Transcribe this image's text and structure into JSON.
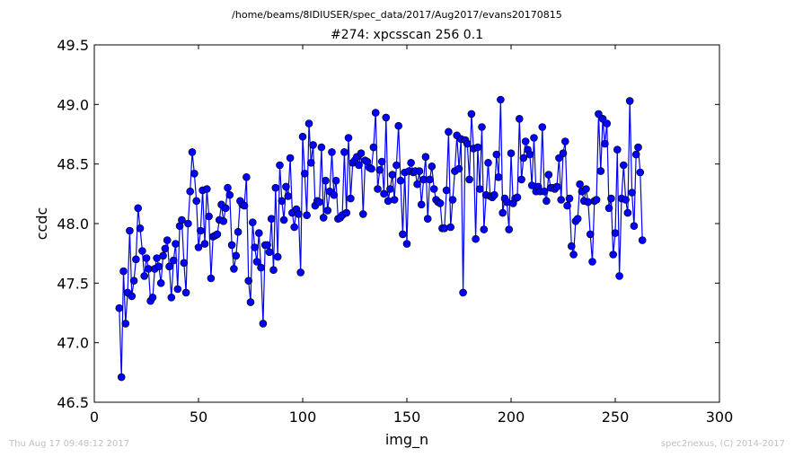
{
  "header": {
    "path": "/home/beams/8IDIUSER/spec_data/2017/Aug2017/evans20170815"
  },
  "footer": {
    "timestamp": "Thu Aug 17 09:48:12 2017",
    "credit": "spec2nexus, (C) 2014-2017"
  },
  "chart_data": {
    "type": "line",
    "title": "#274: xpcsscan 256 0.1",
    "xlabel": "img_n",
    "ylabel": "ccdc",
    "xlim": [
      0,
      300
    ],
    "ylim": [
      46.5,
      49.5
    ],
    "xticks": [
      "0",
      "50",
      "100",
      "150",
      "200",
      "250",
      "300"
    ],
    "yticks": [
      "46.5",
      "47.0",
      "47.5",
      "48.0",
      "48.5",
      "49.0",
      "49.5"
    ],
    "grid": false,
    "marker": "circle",
    "line_color": "#0000ff",
    "series": [
      {
        "x_start": 12,
        "x_step": 1,
        "values": [
          47.29,
          46.71,
          47.6,
          47.16,
          47.42,
          47.94,
          47.39,
          47.52,
          47.7,
          48.13,
          47.96,
          47.77,
          47.56,
          47.71,
          47.62,
          47.35,
          47.38,
          47.62,
          47.71,
          47.64,
          47.5,
          47.73,
          47.79,
          47.86,
          47.64,
          47.38,
          47.69,
          47.83,
          47.45,
          47.98,
          48.03,
          47.67,
          47.42,
          48.0,
          48.27,
          48.6,
          48.42,
          48.19,
          47.8,
          47.94,
          48.28,
          47.83,
          48.29,
          48.06,
          47.54,
          47.89,
          47.9,
          47.91,
          48.03,
          48.16,
          48.02,
          48.13,
          48.3,
          48.24,
          47.82,
          47.62,
          47.73,
          47.93,
          48.19,
          48.16,
          48.15,
          48.39,
          47.52,
          47.34,
          48.01,
          47.8,
          47.68,
          47.92,
          47.63,
          47.16,
          47.82,
          47.82,
          47.76,
          48.04,
          47.61,
          48.3,
          47.72,
          48.49,
          48.19,
          48.03,
          48.31,
          48.23,
          48.55,
          48.09,
          47.97,
          48.12,
          48.08,
          47.59,
          48.73,
          48.42,
          48.07,
          48.84,
          48.51,
          48.66,
          48.15,
          48.19,
          48.18,
          48.64,
          48.05,
          48.36,
          48.11,
          48.27,
          48.6,
          48.24,
          48.36,
          48.04,
          48.05,
          48.07,
          48.6,
          48.09,
          48.72,
          48.21,
          48.51,
          48.53,
          48.56,
          48.49,
          48.59,
          48.08,
          48.53,
          48.52,
          48.47,
          48.46,
          48.64,
          48.93,
          48.29,
          48.45,
          48.52,
          48.25,
          48.89,
          48.19,
          48.29,
          48.41,
          48.2,
          48.49,
          48.82,
          48.36,
          47.91,
          48.43,
          47.83,
          48.44,
          48.51,
          48.43,
          48.44,
          48.33,
          48.44,
          48.16,
          48.37,
          48.56,
          48.04,
          48.37,
          48.48,
          48.29,
          48.2,
          48.18,
          48.17,
          47.96,
          47.96,
          48.28,
          48.77,
          47.97,
          48.2,
          48.44,
          48.74,
          48.46,
          48.71,
          47.42,
          48.7,
          48.67,
          48.37,
          48.92,
          48.63,
          47.87,
          48.64,
          48.29,
          48.81,
          47.95,
          48.24,
          48.51,
          48.23,
          48.22,
          48.24,
          48.58,
          48.39,
          49.04,
          48.09,
          48.21,
          48.18,
          47.95,
          48.59,
          48.17,
          48.21,
          48.22,
          48.88,
          48.37,
          48.55,
          48.69,
          48.62,
          48.58,
          48.32,
          48.72,
          48.27,
          48.31,
          48.27,
          48.81,
          48.27,
          48.19,
          48.41,
          48.3,
          48.3,
          48.29,
          48.31,
          48.55,
          48.2,
          48.59,
          48.69,
          48.15,
          48.21,
          47.81,
          47.74,
          48.02,
          48.04,
          48.33,
          48.27,
          48.19,
          48.29,
          48.18,
          47.91,
          47.68,
          48.19,
          48.2,
          48.92,
          48.44,
          48.88,
          48.67,
          48.84,
          48.13,
          48.21,
          47.74,
          47.92,
          48.62,
          47.56,
          48.21,
          48.49,
          48.2,
          48.09,
          49.03,
          48.26,
          47.98,
          48.58,
          48.64,
          48.43,
          47.86
        ]
      }
    ]
  }
}
